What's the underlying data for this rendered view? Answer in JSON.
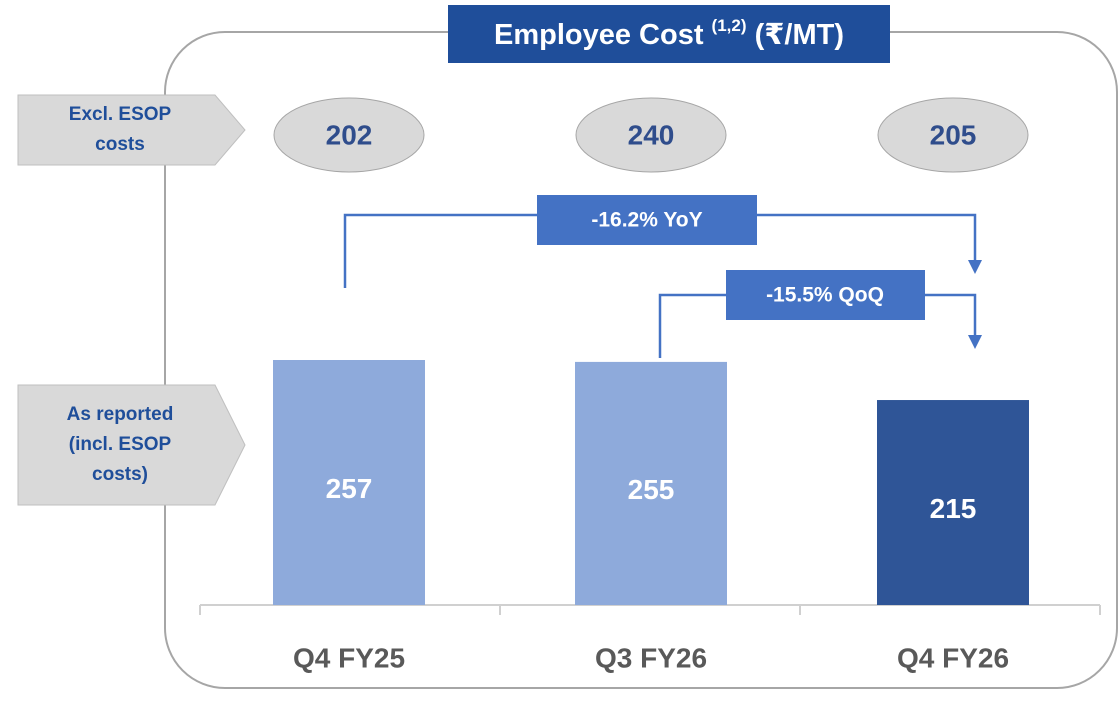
{
  "chart_data": {
    "type": "bar",
    "title": "Employee Cost",
    "title_note": "(1,2)",
    "title_unit": "(₹/MT)",
    "categories": [
      "Q4 FY25",
      "Q3 FY26",
      "Q4 FY26"
    ],
    "values": [
      257,
      255,
      215
    ],
    "colors": [
      "#8eaadb",
      "#8eaadb",
      "#2f5597"
    ],
    "excl_esop_label": [
      "Excl. ESOP",
      "costs"
    ],
    "excl_esop_values": [
      202,
      240,
      205
    ],
    "reported_label": [
      "As reported",
      "(incl. ESOP",
      "costs)"
    ],
    "annotations": [
      "-16.2% YoY",
      "-15.5% QoQ"
    ]
  }
}
